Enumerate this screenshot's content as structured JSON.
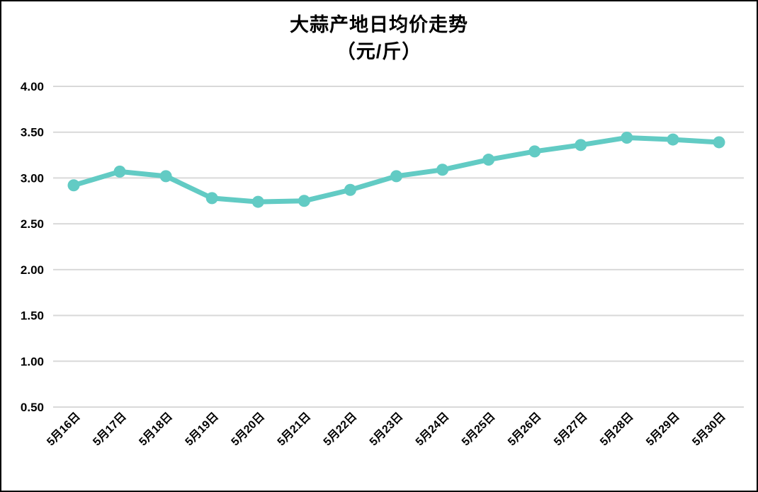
{
  "chart_data": {
    "type": "line",
    "title": "大蒜产地日均价走势",
    "subtitle": "（元/斤）",
    "xlabel": "",
    "ylabel": "",
    "categories": [
      "5月16日",
      "5月17日",
      "5月18日",
      "5月19日",
      "5月20日",
      "5月21日",
      "5月22日",
      "5月23日",
      "5月24日",
      "5月25日",
      "5月26日",
      "5月27日",
      "5月28日",
      "5月29日",
      "5月30日"
    ],
    "values": [
      2.92,
      3.07,
      3.02,
      2.78,
      2.74,
      2.75,
      2.87,
      3.02,
      3.09,
      3.2,
      3.29,
      3.36,
      3.44,
      3.42,
      3.39
    ],
    "ylim": [
      0.5,
      4.0
    ],
    "yticks": [
      {
        "value": 4.0,
        "label": "4.00"
      },
      {
        "value": 3.5,
        "label": "3.50"
      },
      {
        "value": 3.0,
        "label": "3.00"
      },
      {
        "value": 2.5,
        "label": "2.50"
      },
      {
        "value": 2.0,
        "label": "2.00"
      },
      {
        "value": 1.5,
        "label": "1.50"
      },
      {
        "value": 1.0,
        "label": "1.00"
      },
      {
        "value": 0.5,
        "label": "0.50"
      }
    ],
    "grid": true,
    "legend": "none",
    "x_label_rotation": -45,
    "line_color": "#62CBC4",
    "gridline_color": "#D9D9D9",
    "text_color": "#000000",
    "background_color": "#FFFFFF",
    "border_color": "#000000"
  }
}
